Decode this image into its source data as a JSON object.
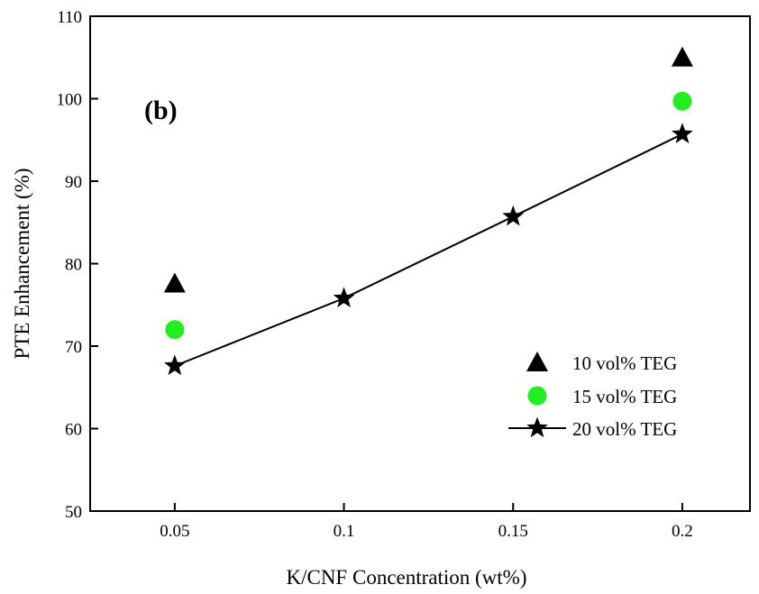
{
  "chart_data": {
    "type": "scatter",
    "panel_label": "(b)",
    "xlabel": "K/CNF Concentration (wt%)",
    "ylabel": "PTE Enhancement (%)",
    "xlim": [
      0.025,
      0.22
    ],
    "ylim": [
      50,
      110
    ],
    "x_ticks": [
      0.05,
      0.1,
      0.15,
      0.2
    ],
    "x_tick_labels": [
      "0.05",
      "0.1",
      "0.15",
      "0.2"
    ],
    "y_ticks": [
      50,
      60,
      70,
      80,
      90,
      100,
      110
    ],
    "y_tick_labels": [
      "50",
      "60",
      "70",
      "80",
      "90",
      "100",
      "110"
    ],
    "grid": false,
    "legend_position": "bottom-right",
    "series": [
      {
        "name": "10 vol% TEG",
        "marker": "triangle",
        "color": "#000000",
        "line": false,
        "x": [
          0.05,
          0.2
        ],
        "y": [
          77.6,
          105.0
        ]
      },
      {
        "name": "15 vol% TEG",
        "marker": "circle",
        "color": "#22ee22",
        "line": false,
        "x": [
          0.05,
          0.2
        ],
        "y": [
          72.0,
          99.7
        ]
      },
      {
        "name": "20 vol% TEG",
        "marker": "star",
        "color": "#000000",
        "line": true,
        "x": [
          0.05,
          0.1,
          0.15,
          0.2
        ],
        "y": [
          67.6,
          75.8,
          85.7,
          95.7
        ]
      }
    ]
  }
}
